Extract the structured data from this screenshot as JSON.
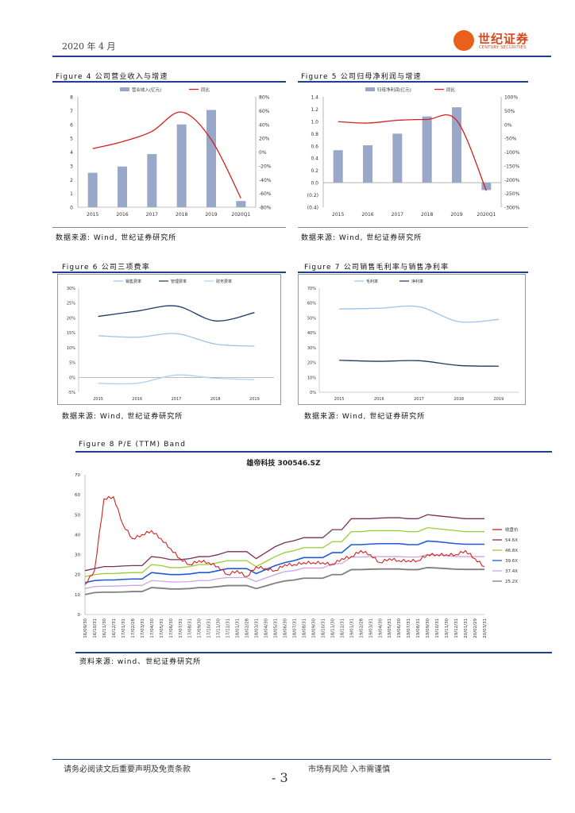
{
  "header": {
    "date": "2020 年 4 月",
    "brand_name": "世纪证券",
    "brand_sub": "CENTURY SECURITIES"
  },
  "figures": {
    "fig4": {
      "title": "Figure 4 公司营业收入与增速",
      "source": "数据来源: Wind, 世纪证券研究所"
    },
    "fig5": {
      "title": "Figure 5 公司归母净利润与增速",
      "source": "数据来源: Wind, 世纪证券研究所"
    },
    "fig6": {
      "title": "Figure 6 公司三项费率",
      "source": "数据来源: Wind, 世纪证券研究所"
    },
    "fig7": {
      "title": "Figure 7 公司销售毛利率与销售净利率",
      "source": "数据来源: Wind, 世纪证券研究所"
    },
    "fig8": {
      "title": "Figure 8 P/E (TTM) Band",
      "source": "资料来源: wind、世纪证券研究所"
    }
  },
  "footer": {
    "disclaimer": "请务必阅读文后重要声明及免责条款",
    "risk": "市场有风险 入市需谨慎",
    "page": "- 3"
  },
  "colors": {
    "bar": "#99a8c8",
    "red": "#d42020",
    "navy": "#1f3864",
    "lightblue": "#9dc3e6",
    "rule": "#1f3f8f"
  },
  "chart_data": [
    {
      "id": "fig4",
      "type": "bar+line",
      "categories": [
        "2015",
        "2016",
        "2017",
        "2018",
        "2019",
        "2020Q1"
      ],
      "series": [
        {
          "name": "营业收入(亿元)",
          "kind": "bar",
          "axis": "left",
          "values": [
            2.5,
            2.95,
            3.85,
            6.0,
            7.05,
            0.45
          ]
        },
        {
          "name": "同比",
          "kind": "line",
          "axis": "right",
          "values": [
            5,
            15,
            30,
            58,
            18,
            -67
          ]
        }
      ],
      "left_axis": {
        "ticks": [
          "0",
          "1",
          "2",
          "3",
          "4",
          "5",
          "6",
          "7",
          "8"
        ],
        "min": 0,
        "max": 8
      },
      "right_axis": {
        "ticks": [
          "-80%",
          "-60%",
          "-40%",
          "-20%",
          "0%",
          "20%",
          "40%",
          "60%",
          "80%"
        ],
        "min": -80,
        "max": 80
      }
    },
    {
      "id": "fig5",
      "type": "bar+line",
      "categories": [
        "2015",
        "2016",
        "2017",
        "2018",
        "2019",
        "2020Q1"
      ],
      "series": [
        {
          "name": "归母净利润(亿元)",
          "kind": "bar",
          "axis": "left",
          "values": [
            0.53,
            0.61,
            0.8,
            1.08,
            1.23,
            -0.12
          ]
        },
        {
          "name": "同比",
          "kind": "line",
          "axis": "right",
          "values": [
            10,
            5,
            15,
            18,
            15,
            -240
          ]
        }
      ],
      "left_axis": {
        "ticks": [
          "(0.4)",
          "(0.2)",
          "0.0",
          "0.2",
          "0.4",
          "0.6",
          "0.8",
          "1.0",
          "1.2",
          "1.4"
        ],
        "min": -0.4,
        "max": 1.4
      },
      "right_axis": {
        "ticks": [
          "-300%",
          "-250%",
          "-200%",
          "-150%",
          "-100%",
          "-50%",
          "0%",
          "50%",
          "100%"
        ],
        "min": -300,
        "max": 100
      }
    },
    {
      "id": "fig6",
      "type": "line",
      "categories": [
        "2015",
        "2016",
        "2017",
        "2018",
        "2019"
      ],
      "series": [
        {
          "name": "销售费率",
          "values": [
            14.0,
            13.5,
            14.7,
            11.2,
            10.5
          ]
        },
        {
          "name": "管理费率",
          "values": [
            20.5,
            22.3,
            24.0,
            19.0,
            21.8
          ]
        },
        {
          "name": "财务费率",
          "values": [
            -2.0,
            -2.0,
            0.8,
            -0.3,
            -0.8
          ]
        }
      ],
      "y_axis": {
        "ticks": [
          "-5%",
          "0%",
          "5%",
          "10%",
          "15%",
          "20%",
          "25%",
          "30%"
        ],
        "min": -5,
        "max": 30
      }
    },
    {
      "id": "fig7",
      "type": "line",
      "categories": [
        "2015",
        "2016",
        "2017",
        "2018",
        "2019"
      ],
      "series": [
        {
          "name": "毛利率",
          "values": [
            56,
            56.5,
            57.5,
            47.5,
            49
          ]
        },
        {
          "name": "净利率",
          "values": [
            21.5,
            20.8,
            21.2,
            18,
            17.5
          ]
        }
      ],
      "y_axis": {
        "ticks": [
          "0%",
          "10%",
          "20%",
          "30%",
          "40%",
          "50%",
          "60%",
          "70%"
        ],
        "min": 0,
        "max": 70
      }
    },
    {
      "id": "fig8",
      "type": "line",
      "title": "雄帝科技 300546.SZ",
      "categories": [
        "16/09/30",
        "16/10/31",
        "16/11/30",
        "16/12/31",
        "17/01/31",
        "17/02/28",
        "17/03/31",
        "17/04/30",
        "17/05/31",
        "17/06/30",
        "17/07/31",
        "17/08/31",
        "17/09/30",
        "17/10/31",
        "17/11/30",
        "17/12/31",
        "18/01/31",
        "18/02/28",
        "18/03/31",
        "18/04/30",
        "18/05/31",
        "18/06/30",
        "18/07/31",
        "18/08/31",
        "18/09/30",
        "18/10/31",
        "18/11/30",
        "18/12/31",
        "19/01/31",
        "19/02/28",
        "19/03/31",
        "19/04/30",
        "19/05/31",
        "19/06/30",
        "19/07/31",
        "19/08/31",
        "19/09/30",
        "19/10/31",
        "19/11/30",
        "19/12/31",
        "20/01/31",
        "20/02/29",
        "20/03/31"
      ],
      "y_axis": {
        "ticks": [
          "0",
          "10",
          "20",
          "30",
          "40",
          "50",
          "60",
          "70"
        ],
        "min": 0,
        "max": 70
      },
      "series": [
        {
          "name": "收盘价",
          "values": [
            15,
            22,
            58,
            59,
            45,
            38,
            40,
            42,
            38,
            33,
            28,
            25,
            27,
            26,
            24,
            20,
            22,
            19,
            24,
            23,
            22,
            25,
            25,
            26,
            26,
            26,
            25,
            28,
            29,
            32,
            30,
            26,
            28,
            27,
            27,
            27,
            30,
            30,
            30,
            30,
            32,
            28,
            24
          ]
        },
        {
          "name": "54.6X",
          "values": [
            22,
            23,
            24,
            24,
            24.3,
            24.5,
            24.5,
            29,
            28.5,
            27.5,
            27.5,
            28,
            29,
            29,
            30,
            31.5,
            31.5,
            31.5,
            28,
            31,
            34,
            36,
            37,
            38.5,
            38.5,
            38.5,
            42.5,
            42.5,
            48,
            48,
            48,
            48.3,
            48.5,
            48.5,
            48,
            48,
            50,
            49.5,
            49,
            48.5,
            48,
            48,
            48
          ]
        },
        {
          "name": "46.8X",
          "values": [
            19,
            20,
            20.5,
            20.5,
            20.8,
            21,
            21,
            25,
            24.5,
            23.5,
            23.5,
            24,
            25,
            25,
            26,
            27,
            27,
            27,
            24,
            26.5,
            29,
            31,
            32,
            33.5,
            33.5,
            33.5,
            36.5,
            36.5,
            41.5,
            41.5,
            42,
            42,
            42,
            42,
            41.5,
            41.5,
            43.5,
            43,
            42.5,
            42,
            41.5,
            41.5,
            41.5
          ]
        },
        {
          "name": "39.6X",
          "values": [
            16,
            17,
            17.3,
            17.3,
            17.6,
            17.8,
            17.8,
            21,
            20.5,
            20,
            20,
            20.3,
            21,
            21,
            22,
            23,
            23,
            23,
            20.5,
            22.5,
            24.5,
            26,
            27,
            28.5,
            28.5,
            28.5,
            31,
            31,
            35,
            35,
            35.3,
            35.5,
            35.5,
            35.5,
            35,
            35,
            36.8,
            36.5,
            36,
            35.5,
            35.2,
            35.2,
            35.2
          ]
        },
        {
          "name": "37.4X",
          "values": [
            13,
            14,
            14.2,
            14.2,
            14.4,
            14.6,
            14.6,
            17,
            16.7,
            16.3,
            16.3,
            16.5,
            17,
            17,
            18,
            18.5,
            18.5,
            18.5,
            16.5,
            18.3,
            20,
            21.5,
            22,
            23.3,
            23.3,
            23.3,
            25.5,
            25.5,
            28.8,
            28.8,
            29,
            29,
            29,
            29,
            28.8,
            28.8,
            30,
            29.8,
            29.5,
            29,
            29,
            29,
            29
          ]
        },
        {
          "name": "25.2X",
          "values": [
            10,
            11,
            11.2,
            11.2,
            11.3,
            11.5,
            11.5,
            13.5,
            13.2,
            12.8,
            12.8,
            13,
            13.5,
            13.5,
            14,
            14.5,
            14.5,
            14.5,
            13,
            14.3,
            15.7,
            16.8,
            17.3,
            18.2,
            18.2,
            18.2,
            20,
            20,
            22.5,
            22.5,
            22.7,
            22.8,
            22.8,
            22.8,
            22.5,
            22.5,
            23.5,
            23.3,
            23,
            22.7,
            22.6,
            22.6,
            22.6
          ]
        }
      ]
    }
  ]
}
